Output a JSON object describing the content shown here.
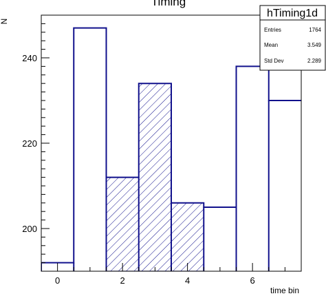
{
  "chart_data": {
    "type": "bar",
    "title": "Timing",
    "xlabel": "time bin",
    "ylabel": "N",
    "xlim": [
      -0.5,
      7.5
    ],
    "ylim": [
      190,
      250
    ],
    "x_ticks": [
      0,
      2,
      4,
      6
    ],
    "y_ticks": [
      200,
      220,
      240
    ],
    "bins": [
      {
        "center": 0,
        "value": 192,
        "hatched": false
      },
      {
        "center": 1,
        "value": 247,
        "hatched": false
      },
      {
        "center": 2,
        "value": 212,
        "hatched": true
      },
      {
        "center": 3,
        "value": 234,
        "hatched": true
      },
      {
        "center": 4,
        "value": 206,
        "hatched": true
      },
      {
        "center": 5,
        "value": 205,
        "hatched": false
      },
      {
        "center": 6,
        "value": 238,
        "hatched": false
      },
      {
        "center": 7,
        "value": 230,
        "hatched": false
      }
    ],
    "line_color": "#10108c",
    "stats_box": {
      "name": "hTiming1d",
      "rows": [
        {
          "label": "Entries",
          "value": "1764"
        },
        {
          "label": "Mean",
          "value": "3.549"
        },
        {
          "label": "Std Dev",
          "value": "2.289"
        }
      ]
    }
  }
}
